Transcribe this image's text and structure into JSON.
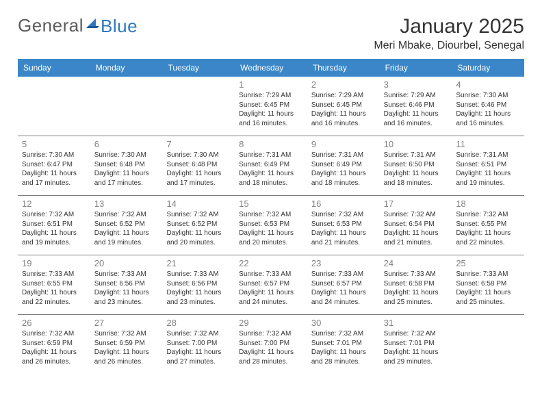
{
  "brand": {
    "part1": "General",
    "part2": "Blue"
  },
  "title": "January 2025",
  "location": "Meri Mbake, Diourbel, Senegal",
  "colors": {
    "header_bg": "#3a86c8",
    "header_text": "#ffffff",
    "daynum": "#808080",
    "text": "#333333",
    "divider": "#7a7a7a",
    "brand_gray": "#5c5c5c",
    "brand_blue": "#2f78bd",
    "background": "#ffffff"
  },
  "typography": {
    "title_fontsize": 30,
    "location_fontsize": 16,
    "dow_fontsize": 12,
    "daynum_fontsize": 13,
    "info_fontsize": 10,
    "logo_fontsize": 26,
    "font_family": "Arial"
  },
  "dow": [
    "Sunday",
    "Monday",
    "Tuesday",
    "Wednesday",
    "Thursday",
    "Friday",
    "Saturday"
  ],
  "weeks": [
    [
      {
        "day": "",
        "sunrise": "",
        "sunset": "",
        "daylight": ""
      },
      {
        "day": "",
        "sunrise": "",
        "sunset": "",
        "daylight": ""
      },
      {
        "day": "",
        "sunrise": "",
        "sunset": "",
        "daylight": ""
      },
      {
        "day": "1",
        "sunrise": "Sunrise: 7:29 AM",
        "sunset": "Sunset: 6:45 PM",
        "daylight": "Daylight: 11 hours and 16 minutes."
      },
      {
        "day": "2",
        "sunrise": "Sunrise: 7:29 AM",
        "sunset": "Sunset: 6:45 PM",
        "daylight": "Daylight: 11 hours and 16 minutes."
      },
      {
        "day": "3",
        "sunrise": "Sunrise: 7:29 AM",
        "sunset": "Sunset: 6:46 PM",
        "daylight": "Daylight: 11 hours and 16 minutes."
      },
      {
        "day": "4",
        "sunrise": "Sunrise: 7:30 AM",
        "sunset": "Sunset: 6:46 PM",
        "daylight": "Daylight: 11 hours and 16 minutes."
      }
    ],
    [
      {
        "day": "5",
        "sunrise": "Sunrise: 7:30 AM",
        "sunset": "Sunset: 6:47 PM",
        "daylight": "Daylight: 11 hours and 17 minutes."
      },
      {
        "day": "6",
        "sunrise": "Sunrise: 7:30 AM",
        "sunset": "Sunset: 6:48 PM",
        "daylight": "Daylight: 11 hours and 17 minutes."
      },
      {
        "day": "7",
        "sunrise": "Sunrise: 7:30 AM",
        "sunset": "Sunset: 6:48 PM",
        "daylight": "Daylight: 11 hours and 17 minutes."
      },
      {
        "day": "8",
        "sunrise": "Sunrise: 7:31 AM",
        "sunset": "Sunset: 6:49 PM",
        "daylight": "Daylight: 11 hours and 18 minutes."
      },
      {
        "day": "9",
        "sunrise": "Sunrise: 7:31 AM",
        "sunset": "Sunset: 6:49 PM",
        "daylight": "Daylight: 11 hours and 18 minutes."
      },
      {
        "day": "10",
        "sunrise": "Sunrise: 7:31 AM",
        "sunset": "Sunset: 6:50 PM",
        "daylight": "Daylight: 11 hours and 18 minutes."
      },
      {
        "day": "11",
        "sunrise": "Sunrise: 7:31 AM",
        "sunset": "Sunset: 6:51 PM",
        "daylight": "Daylight: 11 hours and 19 minutes."
      }
    ],
    [
      {
        "day": "12",
        "sunrise": "Sunrise: 7:32 AM",
        "sunset": "Sunset: 6:51 PM",
        "daylight": "Daylight: 11 hours and 19 minutes."
      },
      {
        "day": "13",
        "sunrise": "Sunrise: 7:32 AM",
        "sunset": "Sunset: 6:52 PM",
        "daylight": "Daylight: 11 hours and 19 minutes."
      },
      {
        "day": "14",
        "sunrise": "Sunrise: 7:32 AM",
        "sunset": "Sunset: 6:52 PM",
        "daylight": "Daylight: 11 hours and 20 minutes."
      },
      {
        "day": "15",
        "sunrise": "Sunrise: 7:32 AM",
        "sunset": "Sunset: 6:53 PM",
        "daylight": "Daylight: 11 hours and 20 minutes."
      },
      {
        "day": "16",
        "sunrise": "Sunrise: 7:32 AM",
        "sunset": "Sunset: 6:53 PM",
        "daylight": "Daylight: 11 hours and 21 minutes."
      },
      {
        "day": "17",
        "sunrise": "Sunrise: 7:32 AM",
        "sunset": "Sunset: 6:54 PM",
        "daylight": "Daylight: 11 hours and 21 minutes."
      },
      {
        "day": "18",
        "sunrise": "Sunrise: 7:32 AM",
        "sunset": "Sunset: 6:55 PM",
        "daylight": "Daylight: 11 hours and 22 minutes."
      }
    ],
    [
      {
        "day": "19",
        "sunrise": "Sunrise: 7:33 AM",
        "sunset": "Sunset: 6:55 PM",
        "daylight": "Daylight: 11 hours and 22 minutes."
      },
      {
        "day": "20",
        "sunrise": "Sunrise: 7:33 AM",
        "sunset": "Sunset: 6:56 PM",
        "daylight": "Daylight: 11 hours and 23 minutes."
      },
      {
        "day": "21",
        "sunrise": "Sunrise: 7:33 AM",
        "sunset": "Sunset: 6:56 PM",
        "daylight": "Daylight: 11 hours and 23 minutes."
      },
      {
        "day": "22",
        "sunrise": "Sunrise: 7:33 AM",
        "sunset": "Sunset: 6:57 PM",
        "daylight": "Daylight: 11 hours and 24 minutes."
      },
      {
        "day": "23",
        "sunrise": "Sunrise: 7:33 AM",
        "sunset": "Sunset: 6:57 PM",
        "daylight": "Daylight: 11 hours and 24 minutes."
      },
      {
        "day": "24",
        "sunrise": "Sunrise: 7:33 AM",
        "sunset": "Sunset: 6:58 PM",
        "daylight": "Daylight: 11 hours and 25 minutes."
      },
      {
        "day": "25",
        "sunrise": "Sunrise: 7:33 AM",
        "sunset": "Sunset: 6:58 PM",
        "daylight": "Daylight: 11 hours and 25 minutes."
      }
    ],
    [
      {
        "day": "26",
        "sunrise": "Sunrise: 7:32 AM",
        "sunset": "Sunset: 6:59 PM",
        "daylight": "Daylight: 11 hours and 26 minutes."
      },
      {
        "day": "27",
        "sunrise": "Sunrise: 7:32 AM",
        "sunset": "Sunset: 6:59 PM",
        "daylight": "Daylight: 11 hours and 26 minutes."
      },
      {
        "day": "28",
        "sunrise": "Sunrise: 7:32 AM",
        "sunset": "Sunset: 7:00 PM",
        "daylight": "Daylight: 11 hours and 27 minutes."
      },
      {
        "day": "29",
        "sunrise": "Sunrise: 7:32 AM",
        "sunset": "Sunset: 7:00 PM",
        "daylight": "Daylight: 11 hours and 28 minutes."
      },
      {
        "day": "30",
        "sunrise": "Sunrise: 7:32 AM",
        "sunset": "Sunset: 7:01 PM",
        "daylight": "Daylight: 11 hours and 28 minutes."
      },
      {
        "day": "31",
        "sunrise": "Sunrise: 7:32 AM",
        "sunset": "Sunset: 7:01 PM",
        "daylight": "Daylight: 11 hours and 29 minutes."
      },
      {
        "day": "",
        "sunrise": "",
        "sunset": "",
        "daylight": ""
      }
    ]
  ]
}
